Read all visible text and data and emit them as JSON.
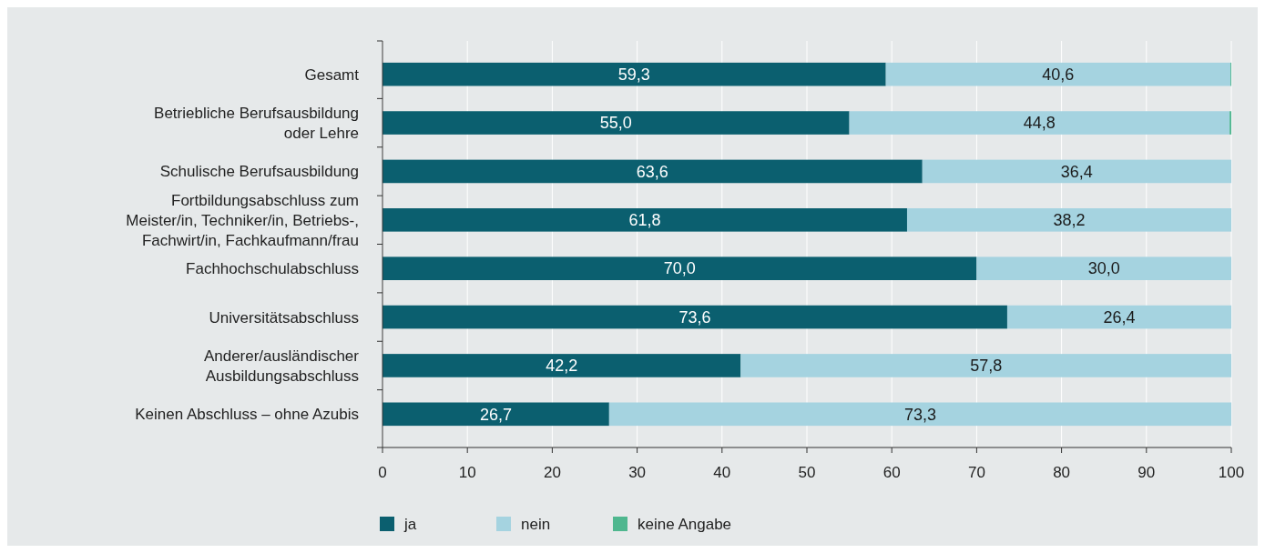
{
  "chart_data": {
    "type": "bar",
    "orientation": "horizontal",
    "stacked": true,
    "categories": [
      "Gesamt",
      "Betriebliche Berufsausbildung\noder Lehre",
      "Schulische Berufsausbildung",
      "Fortbildungsabschluss zum\nMeister/in, Techniker/in, Betriebs-,\nFachwirt/in, Fachkaufmann/frau",
      "Fachhochschulabschluss",
      "Universitätsabschluss",
      "Anderer/ausländischer\nAusbildungsabschluss",
      "Keinen Abschluss – ohne Azubis"
    ],
    "series": [
      {
        "name": "ja",
        "color": "#0b5f6f",
        "values": [
          59.3,
          55.0,
          63.6,
          61.8,
          70.0,
          73.6,
          42.2,
          26.7
        ],
        "value_labels": [
          "59,3",
          "55,0",
          "63,6",
          "61,8",
          "70,0",
          "73,6",
          "42,2",
          "26,7"
        ]
      },
      {
        "name": "nein",
        "color": "#a5d3e0",
        "values": [
          40.6,
          44.8,
          36.4,
          38.2,
          30.0,
          26.4,
          57.8,
          73.3
        ],
        "value_labels": [
          "40,6",
          "44,8",
          "36,4",
          "38,2",
          "30,0",
          "26,4",
          "57,8",
          "73,3"
        ]
      },
      {
        "name": "keine Angabe",
        "color": "#4fb78f",
        "values": [
          0.1,
          0.2,
          null,
          null,
          null,
          null,
          null,
          null
        ]
      }
    ],
    "xlim": [
      0,
      100
    ],
    "xticks": [
      0,
      10,
      20,
      30,
      40,
      50,
      60,
      70,
      80,
      90,
      100
    ],
    "grid": "x",
    "legend": "bottom left"
  }
}
